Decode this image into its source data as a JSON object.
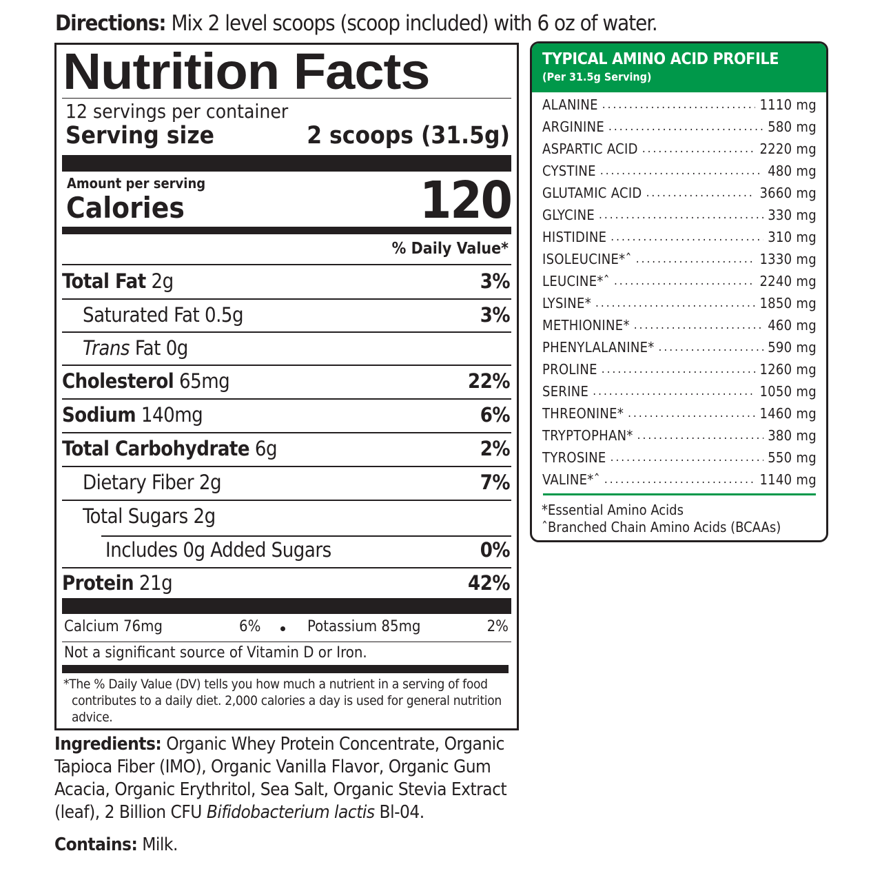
{
  "directions": {
    "label": "Directions:",
    "text": "Mix 2 level scoops (scoop included) with 6 oz of water."
  },
  "nutrition": {
    "title": "Nutrition Facts",
    "servings": "12 servings per container",
    "serving_size_label": "Serving size",
    "serving_size_value": "2 scoops (31.5g)",
    "amount_per_serving": "Amount per serving",
    "calories_label": "Calories",
    "calories_value": "120",
    "dv_header": "% Daily Value*",
    "rows": [
      {
        "name": "Total Fat",
        "amount": "2g",
        "dv": "3%"
      },
      {
        "name": "Saturated Fat",
        "amount": "0.5g",
        "dv": "3%"
      },
      {
        "name": "Trans",
        "name_suffix": "Fat",
        "amount": "0g",
        "dv": ""
      },
      {
        "name": "Cholesterol",
        "amount": "65mg",
        "dv": "22%"
      },
      {
        "name": "Sodium",
        "amount": "140mg",
        "dv": "6%"
      },
      {
        "name": "Total Carbohydrate",
        "amount": "6g",
        "dv": "2%"
      },
      {
        "name": "Dietary Fiber",
        "amount": "2g",
        "dv": "7%"
      },
      {
        "name": "Total Sugars",
        "amount": "2g",
        "dv": ""
      },
      {
        "name": "Includes 0g Added Sugars",
        "amount": "",
        "dv": "0%"
      },
      {
        "name": "Protein",
        "amount": "21g",
        "dv": "42%"
      }
    ],
    "minerals": [
      {
        "name": "Calcium",
        "amount": "76mg",
        "dv": "6%"
      },
      {
        "name": "Potassium",
        "amount": "85mg",
        "dv": "2%"
      }
    ],
    "not_significant": "Not a significant source of Vitamin D or Iron.",
    "footnote": "*The % Daily Value (DV) tells you how much a nutrient in a serving of food contributes to a daily diet. 2,000 calories a day is used for general nutrition advice."
  },
  "amino": {
    "title": "TYPICAL AMINO ACID PROFILE",
    "subtitle": "(Per 31.5g Serving)",
    "header_color": "#00984a",
    "items": [
      {
        "name": "ALANINE",
        "value": "1110 mg"
      },
      {
        "name": "ARGININE",
        "value": "580 mg"
      },
      {
        "name": "ASPARTIC ACID",
        "value": "2220 mg"
      },
      {
        "name": "CYSTINE",
        "value": "480 mg"
      },
      {
        "name": "GLUTAMIC ACID",
        "value": "3660 mg"
      },
      {
        "name": "GLYCINE",
        "value": "330 mg"
      },
      {
        "name": "HISTIDINE",
        "value": "310 mg"
      },
      {
        "name": "ISOLEUCINE*ˆ",
        "value": "1330 mg"
      },
      {
        "name": "LEUCINE*ˆ",
        "value": "2240 mg"
      },
      {
        "name": "LYSINE*",
        "value": "1850 mg"
      },
      {
        "name": "METHIONINE*",
        "value": "460 mg"
      },
      {
        "name": "PHENYLALANINE*",
        "value": "590 mg"
      },
      {
        "name": "PROLINE",
        "value": "1260 mg"
      },
      {
        "name": "SERINE",
        "value": "1050 mg"
      },
      {
        "name": "THREONINE*",
        "value": "1460 mg"
      },
      {
        "name": "TRYPTOPHAN*",
        "value": "380 mg"
      },
      {
        "name": "TYROSINE",
        "value": "550 mg"
      },
      {
        "name": "VALINE*ˆ",
        "value": "1140 mg"
      }
    ],
    "footnotes": [
      "*Essential Amino Acids",
      "ˆBranched Chain Amino Acids (BCAAs)"
    ]
  },
  "ingredients": {
    "label": "Ingredients:",
    "text": "Organic Whey Protein Concentrate, Organic Tapioca Fiber (IMO), Organic Vanilla Flavor, Organic Gum Acacia, Organic Erythritol, Sea Salt, Organic Stevia Extract (leaf), 2 Billion CFU",
    "italic": "Bifidobacterium lactis",
    "tail": "Bl-04."
  },
  "contains": {
    "label": "Contains:",
    "text": "Milk."
  }
}
